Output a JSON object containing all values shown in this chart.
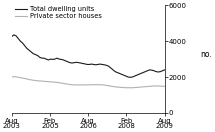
{
  "title": "",
  "ylabel": "no.",
  "ylim": [
    0,
    6000
  ],
  "yticks": [
    0,
    2000,
    4000,
    6000
  ],
  "ytick_labels": [
    "0",
    "2000",
    "4000",
    "6000"
  ],
  "xtick_positions": [
    0,
    18,
    36,
    54,
    72
  ],
  "xtick_labels": [
    "Aug\n2003",
    "Feb\n2005",
    "Aug\n2006",
    "Feb\n2008",
    "Aug\n2009"
  ],
  "legend": [
    "Total dwelling units",
    "Private sector houses"
  ],
  "line_colors": [
    "#1a1a1a",
    "#b0b0b0"
  ],
  "background_color": "#ffffff",
  "total_dwelling": [
    4250,
    4350,
    4300,
    4150,
    4000,
    3900,
    3750,
    3600,
    3500,
    3400,
    3300,
    3250,
    3200,
    3100,
    3050,
    3050,
    3000,
    2950,
    3000,
    2980,
    3000,
    3050,
    3000,
    2980,
    2950,
    2900,
    2850,
    2800,
    2780,
    2800,
    2820,
    2800,
    2780,
    2750,
    2730,
    2700,
    2700,
    2720,
    2700,
    2680,
    2700,
    2720,
    2700,
    2680,
    2650,
    2600,
    2500,
    2400,
    2300,
    2250,
    2200,
    2150,
    2100,
    2050,
    2000,
    1980,
    2000,
    2050,
    2100,
    2150,
    2200,
    2250,
    2300,
    2350,
    2400,
    2380,
    2350,
    2300,
    2280,
    2300,
    2350,
    2400
  ],
  "private_sector": [
    2000,
    2020,
    2010,
    1980,
    1960,
    1940,
    1920,
    1890,
    1860,
    1840,
    1820,
    1800,
    1790,
    1780,
    1770,
    1760,
    1750,
    1740,
    1730,
    1720,
    1710,
    1700,
    1680,
    1660,
    1640,
    1620,
    1600,
    1580,
    1570,
    1560,
    1560,
    1560,
    1560,
    1560,
    1560,
    1560,
    1560,
    1570,
    1570,
    1570,
    1570,
    1570,
    1560,
    1550,
    1530,
    1510,
    1490,
    1470,
    1450,
    1440,
    1430,
    1420,
    1410,
    1400,
    1400,
    1400,
    1400,
    1410,
    1420,
    1430,
    1440,
    1450,
    1460,
    1470,
    1480,
    1490,
    1500,
    1500,
    1500,
    1490,
    1480,
    1480
  ]
}
